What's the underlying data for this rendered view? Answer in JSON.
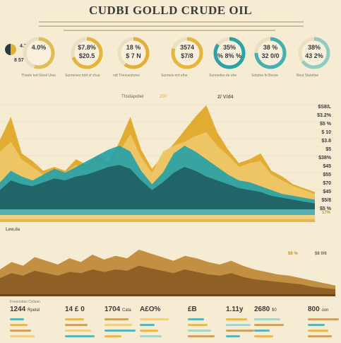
{
  "title": "CUDBI GOLLD  CRUDE OIL",
  "left_stats": [
    {
      "label": "4.21",
      "icon_label": "n"
    },
    {
      "label": "8 57 ⓑ"
    }
  ],
  "kpis": [
    {
      "value_1": "4.0%",
      "value_2": "",
      "ring_color": "#e2bc5a",
      "ring_fill": 0.55
    },
    {
      "value_1": "$7.8%",
      "value_2": "$20.5",
      "ring_color": "#e3b53c",
      "ring_fill": 0.7
    },
    {
      "value_1": "18 %",
      "value_2": "$ 7 N",
      "ring_color": "#e0b03a",
      "ring_fill": 0.6
    },
    {
      "value_1": "3574",
      "value_2": "$7/8",
      "ring_color": "#e6b53e",
      "ring_fill": 0.8
    },
    {
      "value_1": "35%",
      "value_2": "% 8% %",
      "ring_color": "#2aa3a8",
      "ring_fill": 0.85
    },
    {
      "value_1": "38 %",
      "value_2": "32 0/0",
      "ring_color": "#46b0b0",
      "ring_fill": 0.75
    },
    {
      "value_1": "38%",
      "value_2": "43 2%",
      "ring_color": "#8fcdc2",
      "ring_fill": 0.65
    }
  ],
  "kpi_captions": [
    "Thanle ted Silvel Ures",
    "Sunnenes tobl of chue",
    "ndl Thesuestuine",
    "Sunnels ent ethe",
    "Sunnedes de ehe",
    "Sotutoe fe Besse",
    "Beut Stuteline"
  ],
  "mid_labels": [
    "Thsdapobel",
    "200",
    "2/ V/d4"
  ],
  "upper_right_labels": [
    "$S8/L",
    "$3.2%",
    "$5 %",
    "$ 10",
    "$3.8",
    "$5",
    "$38%",
    "$45",
    "$55",
    "$70",
    "$45",
    "$5/8",
    "$5 %"
  ],
  "upper_bottom_note": "17%",
  "lower_left_label": "Lew.da",
  "lower_right_labels": [
    "$8 %",
    "$8 0/6"
  ],
  "bottom_header": "Freserstion Cslisan",
  "bottom_stats": [
    {
      "value": "1244",
      "unit": "Rpetel"
    },
    {
      "value": "14 £ 0",
      "unit": ""
    },
    {
      "value": "1704",
      "unit": "Cata"
    },
    {
      "value": "A£O%",
      "unit": ""
    },
    {
      "value": "£B",
      "unit": ""
    },
    {
      "value": "1.11y",
      "unit": ""
    },
    {
      "value": "2680",
      "unit": "$0"
    },
    {
      "value": "800",
      "unit": "oon"
    }
  ],
  "colors": {
    "gold": "#e0a92a",
    "gold_light": "#eec86a",
    "teal": "#22a0a8",
    "teal_dark": "#1f5e62",
    "brown": "#8a5a22",
    "bronze": "#c08a3a",
    "background": "#f6ecd4"
  },
  "chart_data": [
    {
      "type": "area",
      "title": "",
      "x": [
        0,
        1,
        2,
        3,
        4,
        5,
        6,
        7,
        8,
        9,
        10,
        11,
        12,
        13,
        14,
        15,
        16,
        17,
        18,
        19,
        20,
        21,
        22,
        23,
        24,
        25,
        26,
        27,
        28,
        29
      ],
      "series": [
        {
          "name": "",
          "color": "#e0a92a",
          "values": [
            72,
            96,
            58,
            50,
            40,
            44,
            40,
            52,
            46,
            56,
            48,
            70,
            96,
            62,
            42,
            56,
            68,
            82,
            96,
            108,
            80,
            62,
            48,
            52,
            58,
            40,
            34,
            26,
            22,
            18
          ]
        },
        {
          "name": "",
          "color": "#eec86a",
          "values": [
            60,
            70,
            52,
            44,
            36,
            40,
            38,
            46,
            40,
            50,
            44,
            60,
            78,
            54,
            38,
            60,
            66,
            70,
            76,
            80,
            66,
            56,
            44,
            48,
            50,
            36,
            30,
            24,
            20,
            16
          ]
        },
        {
          "name": "",
          "color": "#22a0a8",
          "values": [
            28,
            40,
            34,
            30,
            36,
            42,
            38,
            44,
            50,
            56,
            62,
            66,
            60,
            40,
            26,
            38,
            58,
            66,
            60,
            52,
            44,
            36,
            30,
            28,
            24,
            20,
            16,
            14,
            12,
            10
          ]
        },
        {
          "name": "",
          "color": "#1f5e62",
          "values": [
            20,
            30,
            26,
            24,
            28,
            32,
            30,
            34,
            36,
            40,
            44,
            46,
            42,
            30,
            20,
            28,
            38,
            44,
            40,
            34,
            30,
            26,
            22,
            20,
            18,
            14,
            12,
            10,
            8,
            6
          ]
        }
      ]
    },
    {
      "type": "area",
      "title": "",
      "x": [
        0,
        1,
        2,
        3,
        4,
        5,
        6,
        7,
        8,
        9,
        10,
        11,
        12,
        13,
        14,
        15,
        16,
        17,
        18,
        19,
        20,
        21,
        22,
        23,
        24,
        25,
        26,
        27,
        28,
        29
      ],
      "series": [
        {
          "name": "",
          "color": "#c08a3a",
          "values": [
            40,
            52,
            46,
            60,
            54,
            48,
            58,
            52,
            64,
            56,
            62,
            58,
            72,
            66,
            60,
            54,
            62,
            58,
            52,
            48,
            54,
            46,
            40,
            36,
            32,
            30,
            26,
            22,
            18,
            14
          ]
        },
        {
          "name": "",
          "color": "#8a5a22",
          "values": [
            26,
            34,
            30,
            38,
            34,
            30,
            36,
            34,
            40,
            36,
            40,
            38,
            46,
            42,
            38,
            34,
            40,
            36,
            32,
            30,
            34,
            28,
            24,
            22,
            20,
            18,
            16,
            12,
            10,
            8
          ]
        }
      ]
    }
  ]
}
